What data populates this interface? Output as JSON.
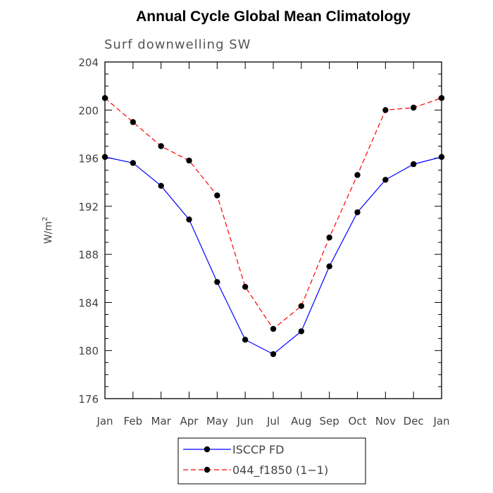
{
  "chart_data": {
    "type": "line",
    "title": "Annual Cycle Global Mean Climatology",
    "subtitle": "Surf downwelling SW",
    "xlabel": "",
    "ylabel": "W/m",
    "ylabel_superscript": "2",
    "categories": [
      "Jan",
      "Feb",
      "Mar",
      "Apr",
      "May",
      "Jun",
      "Jul",
      "Aug",
      "Sep",
      "Oct",
      "Nov",
      "Dec",
      "Jan"
    ],
    "ylim": [
      176,
      204
    ],
    "yticks": [
      176,
      180,
      184,
      188,
      192,
      196,
      200,
      204
    ],
    "legend_position": "bottom-center",
    "series": [
      {
        "name": "ISCCP FD",
        "color": "#0000ff",
        "dash": "solid",
        "values": [
          196.1,
          195.6,
          193.7,
          190.9,
          185.7,
          180.9,
          179.7,
          181.6,
          187.0,
          191.5,
          194.2,
          195.5,
          196.1
        ]
      },
      {
        "name": "044_f1850 (1−1)",
        "color": "#ff0000",
        "dash": "dashed",
        "values": [
          201.0,
          199.0,
          197.0,
          195.8,
          192.9,
          185.3,
          181.8,
          183.7,
          189.4,
          194.6,
          200.0,
          200.2,
          201.0
        ]
      }
    ]
  }
}
